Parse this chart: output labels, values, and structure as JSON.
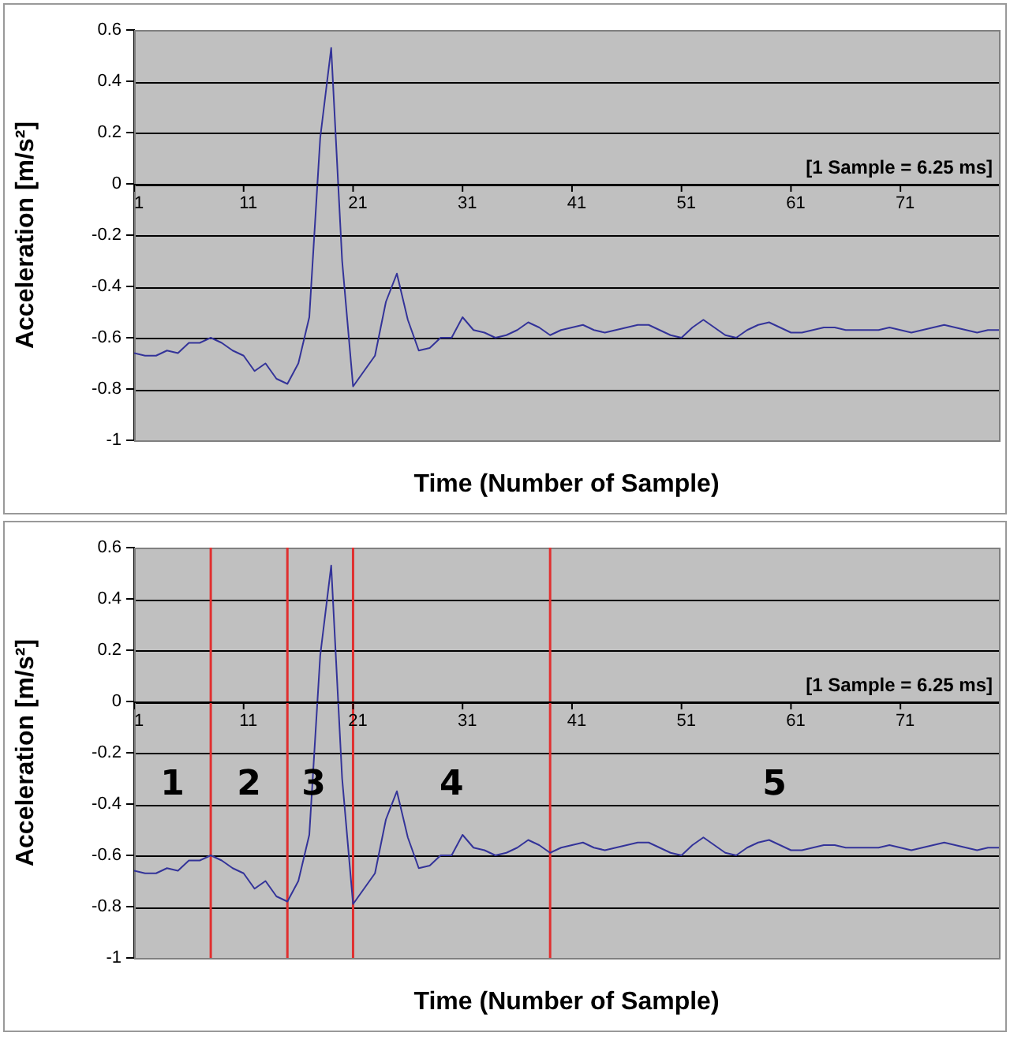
{
  "chart_data": [
    {
      "type": "line",
      "xlabel": "Time (Number of Sample)",
      "ylabel": "Acceleration [m/s²]",
      "annotations": [
        "[1 Sample = 6.25 ms]"
      ],
      "x": [
        1,
        2,
        3,
        4,
        5,
        6,
        7,
        8,
        9,
        10,
        11,
        12,
        13,
        14,
        15,
        16,
        17,
        18,
        19,
        20,
        21,
        22,
        23,
        24,
        25,
        26,
        27,
        28,
        29,
        30,
        31,
        32,
        33,
        34,
        35,
        36,
        37,
        38,
        39,
        40,
        41,
        42,
        43,
        44,
        45,
        46,
        47,
        48,
        49,
        50,
        51,
        52,
        53,
        54,
        55,
        56,
        57,
        58,
        59,
        60,
        61,
        62,
        63,
        64,
        65,
        66,
        67,
        68,
        69,
        70,
        71,
        72,
        73,
        74,
        75,
        76,
        77,
        78,
        79,
        80
      ],
      "series": [
        {
          "color": "#333399",
          "values": [
            -0.66,
            -0.67,
            -0.67,
            -0.65,
            -0.66,
            -0.62,
            -0.62,
            -0.6,
            -0.62,
            -0.65,
            -0.67,
            -0.73,
            -0.7,
            -0.76,
            -0.78,
            -0.7,
            -0.52,
            0.18,
            0.53,
            -0.3,
            -0.79,
            -0.73,
            -0.67,
            -0.46,
            -0.35,
            -0.53,
            -0.65,
            -0.64,
            -0.6,
            -0.6,
            -0.52,
            -0.57,
            -0.58,
            -0.6,
            -0.59,
            -0.57,
            -0.54,
            -0.56,
            -0.59,
            -0.57,
            -0.56,
            -0.55,
            -0.57,
            -0.58,
            -0.57,
            -0.56,
            -0.55,
            -0.55,
            -0.57,
            -0.59,
            -0.6,
            -0.56,
            -0.53,
            -0.56,
            -0.59,
            -0.6,
            -0.57,
            -0.55,
            -0.54,
            -0.56,
            -0.58,
            -0.58,
            -0.57,
            -0.56,
            -0.56,
            -0.57,
            -0.57,
            -0.57,
            -0.57,
            -0.56,
            -0.57,
            -0.58,
            -0.57,
            -0.56,
            -0.55,
            -0.56,
            -0.57,
            -0.58,
            -0.57,
            -0.57
          ]
        }
      ],
      "xlim": [
        1,
        80
      ],
      "xticks": [
        1,
        11,
        21,
        31,
        41,
        51,
        61,
        71
      ],
      "ylim": [
        -1,
        0.6
      ],
      "yticks": [
        -1,
        -0.8,
        -0.6,
        -0.4,
        -0.2,
        0,
        0.2,
        0.4,
        0.6
      ],
      "grid": "y",
      "marker": "none"
    },
    {
      "type": "line",
      "xlabel": "Time (Number of Sample)",
      "ylabel": "Acceleration [m/s²]",
      "annotations": [
        "[1 Sample = 6.25 ms]",
        "1",
        "2",
        "3",
        "4",
        "5"
      ],
      "x": [
        1,
        2,
        3,
        4,
        5,
        6,
        7,
        8,
        9,
        10,
        11,
        12,
        13,
        14,
        15,
        16,
        17,
        18,
        19,
        20,
        21,
        22,
        23,
        24,
        25,
        26,
        27,
        28,
        29,
        30,
        31,
        32,
        33,
        34,
        35,
        36,
        37,
        38,
        39,
        40,
        41,
        42,
        43,
        44,
        45,
        46,
        47,
        48,
        49,
        50,
        51,
        52,
        53,
        54,
        55,
        56,
        57,
        58,
        59,
        60,
        61,
        62,
        63,
        64,
        65,
        66,
        67,
        68,
        69,
        70,
        71,
        72,
        73,
        74,
        75,
        76,
        77,
        78,
        79,
        80
      ],
      "series": [
        {
          "color": "#333399",
          "values": [
            -0.66,
            -0.67,
            -0.67,
            -0.65,
            -0.66,
            -0.62,
            -0.62,
            -0.6,
            -0.62,
            -0.65,
            -0.67,
            -0.73,
            -0.7,
            -0.76,
            -0.78,
            -0.7,
            -0.52,
            0.18,
            0.53,
            -0.3,
            -0.79,
            -0.73,
            -0.67,
            -0.46,
            -0.35,
            -0.53,
            -0.65,
            -0.64,
            -0.6,
            -0.6,
            -0.52,
            -0.57,
            -0.58,
            -0.6,
            -0.59,
            -0.57,
            -0.54,
            -0.56,
            -0.59,
            -0.57,
            -0.56,
            -0.55,
            -0.57,
            -0.58,
            -0.57,
            -0.56,
            -0.55,
            -0.55,
            -0.57,
            -0.59,
            -0.6,
            -0.56,
            -0.53,
            -0.56,
            -0.59,
            -0.6,
            -0.57,
            -0.55,
            -0.54,
            -0.56,
            -0.58,
            -0.58,
            -0.57,
            -0.56,
            -0.56,
            -0.57,
            -0.57,
            -0.57,
            -0.57,
            -0.56,
            -0.57,
            -0.58,
            -0.57,
            -0.56,
            -0.55,
            -0.56,
            -0.57,
            -0.58,
            -0.57,
            -0.57
          ]
        }
      ],
      "ref_lines": [
        {
          "axis": "x",
          "value": 8,
          "color": "#e03030"
        },
        {
          "axis": "x",
          "value": 15,
          "color": "#e03030"
        },
        {
          "axis": "x",
          "value": 21,
          "color": "#e03030"
        },
        {
          "axis": "x",
          "value": 39,
          "color": "#e03030"
        }
      ],
      "xlim": [
        1,
        80
      ],
      "xticks": [
        1,
        11,
        21,
        31,
        41,
        51,
        61,
        71
      ],
      "ylim": [
        -1,
        0.6
      ],
      "yticks": [
        -1,
        -0.8,
        -0.6,
        -0.4,
        -0.2,
        0,
        0.2,
        0.4,
        0.6
      ],
      "grid": "y",
      "marker": "none"
    }
  ]
}
